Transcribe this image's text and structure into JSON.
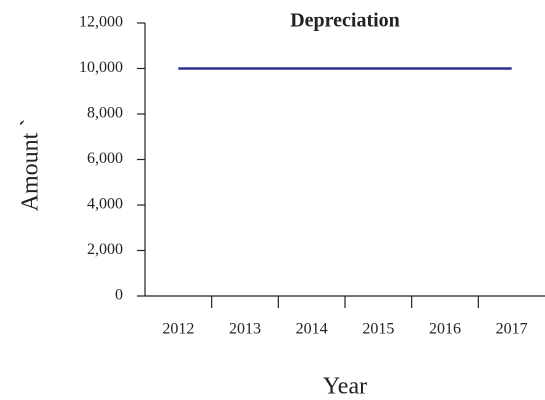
{
  "chart_data": {
    "type": "line",
    "title": "Depreciation",
    "x_label": "Year",
    "y_label": "Amount `",
    "categories": [
      "2012",
      "2013",
      "2014",
      "2015",
      "2016",
      "2017"
    ],
    "series": [
      {
        "name": "Depreciation",
        "color": "#2e3192",
        "values": [
          10000,
          10000,
          10000,
          10000,
          10000,
          10000
        ]
      }
    ],
    "ylim": [
      0,
      12000
    ],
    "yticks": [
      0,
      {
        "value": 2000,
        "label": "2,000"
      },
      {
        "value": 4000,
        "label": "4,000"
      },
      {
        "value": 6000,
        "label": "6,000"
      },
      {
        "value": 8000,
        "label": "8,000"
      },
      {
        "value": 10000,
        "label": "10,000"
      },
      {
        "value": 12000,
        "label": "12,000"
      }
    ]
  }
}
